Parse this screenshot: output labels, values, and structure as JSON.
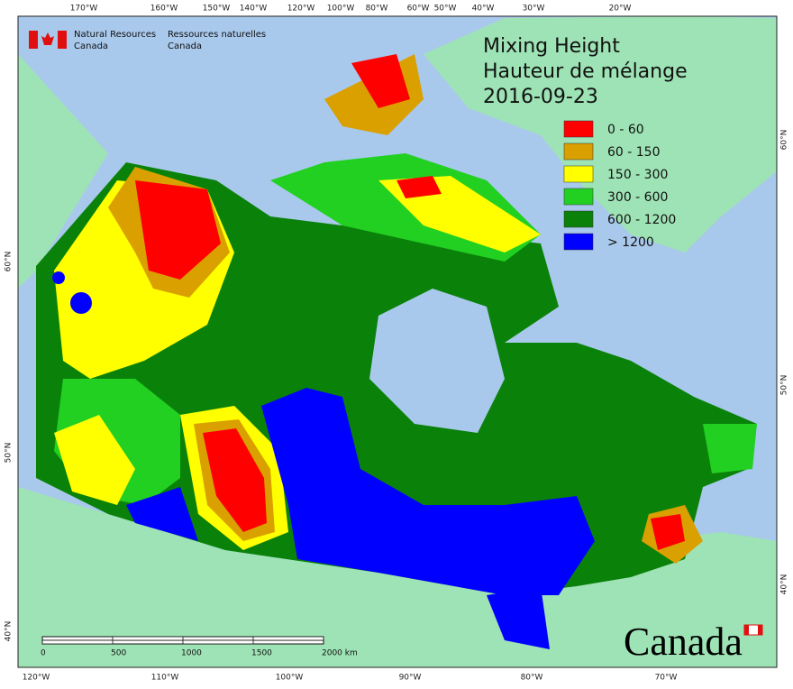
{
  "header": {
    "agency_en": [
      "Natural Resources",
      "Canada"
    ],
    "agency_fr": [
      "Ressources naturelles",
      "Canada"
    ]
  },
  "title": [
    "Mixing Height",
    "Hauteur de mélange",
    "2016-09-23"
  ],
  "legend": [
    {
      "label": "0 - 60",
      "color": "#ff0000"
    },
    {
      "label": "60 - 150",
      "color": "#daa000"
    },
    {
      "label": "150 - 300",
      "color": "#ffff00"
    },
    {
      "label": "300 - 600",
      "color": "#22d022"
    },
    {
      "label": "600 - 1200",
      "color": "#0a820a"
    },
    {
      "label": "> 1200",
      "color": "#0000ff"
    }
  ],
  "graticule": {
    "top": [
      "170°W",
      "160°W",
      "150°W",
      "140°W",
      "120°W",
      "100°W",
      "80°W",
      "60°W",
      "50°W",
      "40°W",
      "30°W",
      "20°W"
    ],
    "bottom": [
      "120°W",
      "110°W",
      "100°W",
      "90°W",
      "80°W",
      "70°W"
    ],
    "left": [
      "60°N",
      "50°N",
      "40°N"
    ],
    "right": [
      "60°N",
      "50°N",
      "40°N"
    ]
  },
  "scale_bar": {
    "labels": [
      "0",
      "500",
      "1000",
      "1500",
      "2000 km"
    ]
  },
  "wordmark": "Canada"
}
